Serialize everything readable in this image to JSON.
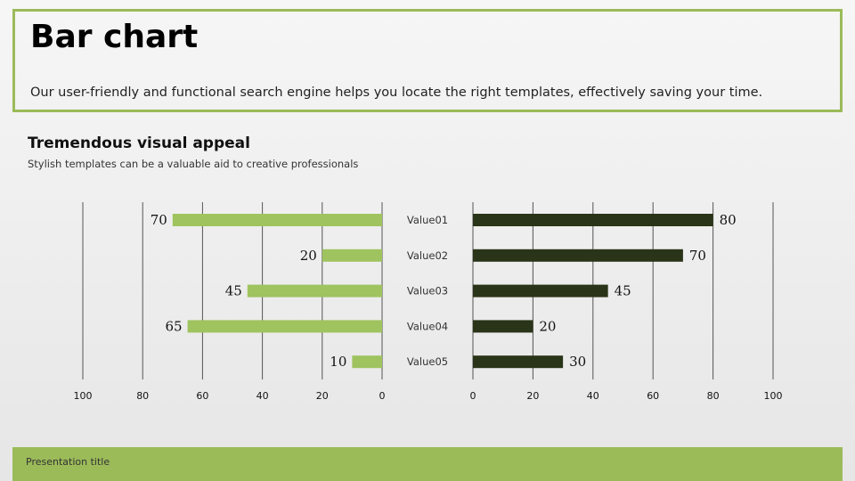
{
  "slide": {
    "title": "Bar chart",
    "description": "Our user-friendly and functional search engine helps you locate the right templates, effectively saving your time.",
    "subtitle": "Tremendous visual appeal",
    "caption": "Stylish templates can be a valuable aid to creative professionals",
    "footer": "Presentation title"
  },
  "colors": {
    "accent": "#9bbb59",
    "left_bar": "#9fc35e",
    "right_bar": "#2a3418",
    "grid": "#555555"
  },
  "chart_data": {
    "type": "bar",
    "orientation": "horizontal",
    "layout": "butterfly",
    "categories": [
      "Value01",
      "Value02",
      "Value03",
      "Value04",
      "Value05"
    ],
    "series": [
      {
        "side": "left",
        "values": [
          70,
          20,
          45,
          65,
          10
        ],
        "color": "#9fc35e"
      },
      {
        "side": "right",
        "values": [
          80,
          70,
          45,
          20,
          30
        ],
        "color": "#2a3418"
      }
    ],
    "left_axis": {
      "ticks": [
        "100",
        "80",
        "60",
        "40",
        "20",
        "0"
      ],
      "xlim": [
        100,
        0
      ]
    },
    "right_axis": {
      "ticks": [
        "0",
        "20",
        "40",
        "60",
        "80",
        "100"
      ],
      "xlim": [
        0,
        100
      ]
    },
    "grid": true,
    "data_labels": true,
    "legend": "none"
  }
}
